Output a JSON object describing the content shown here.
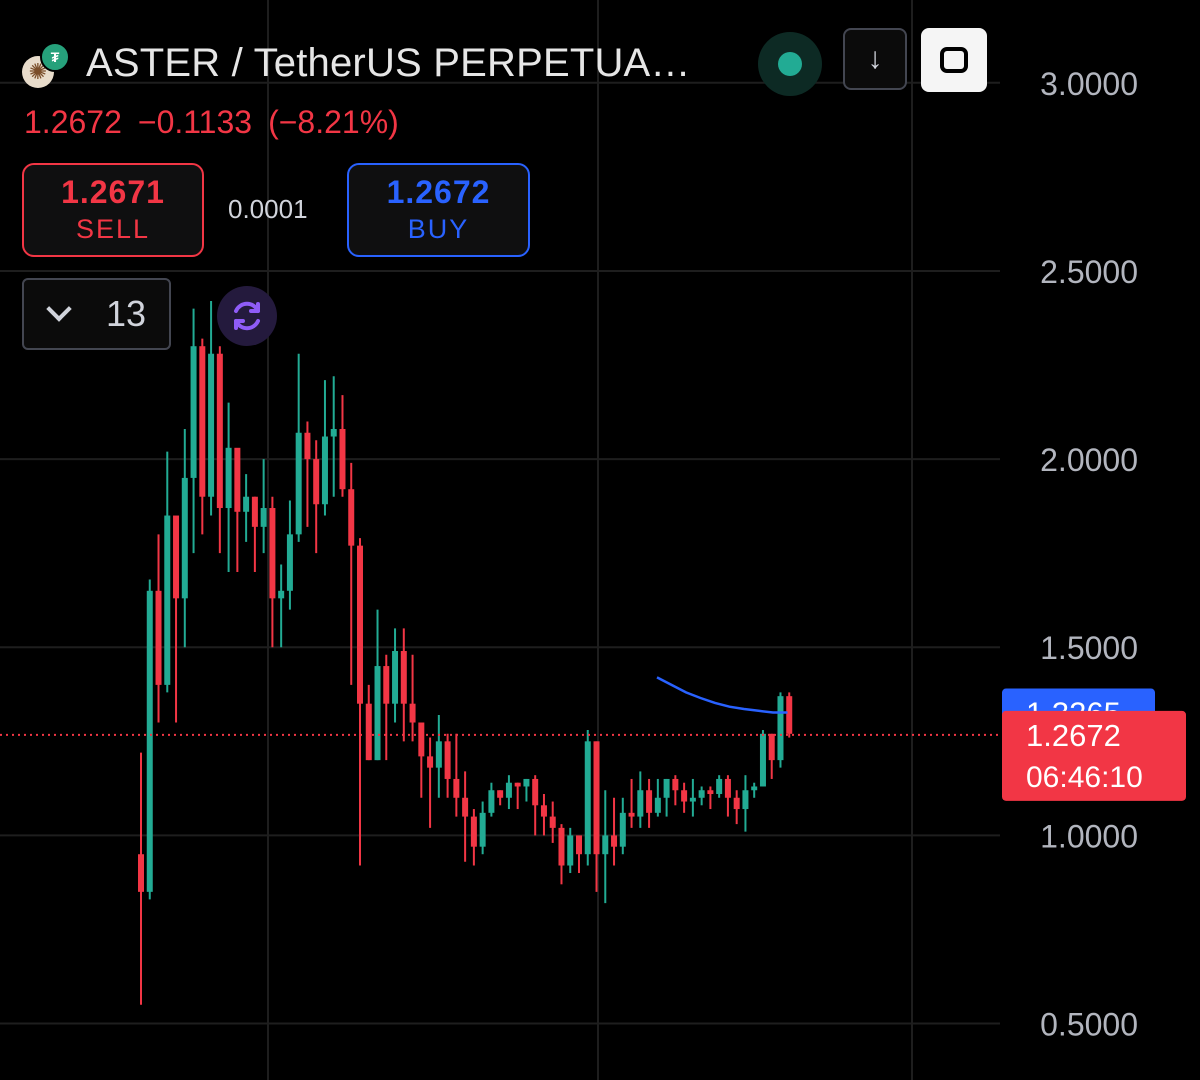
{
  "header": {
    "title": "ASTER / TetherUS PERPETUA…"
  },
  "quote": {
    "last": "1.2672",
    "change": "−0.1133",
    "change_pct": "(−8.21%)"
  },
  "trade": {
    "sell_price": "1.2671",
    "sell_label": "SELL",
    "spread": "0.0001",
    "buy_price": "1.2672",
    "buy_label": "BUY"
  },
  "toolbar": {
    "interval_value": "13"
  },
  "icons": {
    "logo": "aster-logo-icon",
    "quote_currency": "tether-icon",
    "status": "market-open-dot-icon",
    "download": "arrow-down-icon",
    "fullscreen": "fullscreen-icon",
    "interval": "chevron-down-icon",
    "refresh": "refresh-icon"
  },
  "colors": {
    "up": "#22ab94",
    "down": "#f23645",
    "ma_line": "#2962ff",
    "grid": "#1e1e1e",
    "axis_text": "#b2b5be"
  },
  "chart_data": {
    "type": "candlestick",
    "y_ticks": [
      "3.0000",
      "2.5000",
      "2.0000",
      "1.5000",
      "1.0000",
      "0.5000"
    ],
    "ylim": [
      0.35,
      3.22
    ],
    "grid": true,
    "last_price_label": "1.2672",
    "last_price_value": 1.2672,
    "countdown": "06:46:10",
    "ma_label": "1.3265",
    "ma_value": 1.3265,
    "ma_line": [
      1.42,
      1.4,
      1.38,
      1.365,
      1.352,
      1.342,
      1.336,
      1.331,
      1.3265,
      1.3265
    ],
    "ma_start_index": 75,
    "candles": [
      [
        0.95,
        0.85,
        1.22,
        0.55
      ],
      [
        0.85,
        1.65,
        1.68,
        0.83
      ],
      [
        1.65,
        1.4,
        1.8,
        1.3
      ],
      [
        1.4,
        1.85,
        2.02,
        1.38
      ],
      [
        1.85,
        1.63,
        1.7,
        1.3
      ],
      [
        1.63,
        1.95,
        2.08,
        1.5
      ],
      [
        1.95,
        2.3,
        2.4,
        1.75
      ],
      [
        2.3,
        1.9,
        2.32,
        1.8
      ],
      [
        1.9,
        2.28,
        2.42,
        1.85
      ],
      [
        2.28,
        1.87,
        2.3,
        1.75
      ],
      [
        1.87,
        2.03,
        2.15,
        1.7
      ],
      [
        2.03,
        1.86,
        2.0,
        1.7
      ],
      [
        1.86,
        1.9,
        1.96,
        1.78
      ],
      [
        1.9,
        1.82,
        1.9,
        1.7
      ],
      [
        1.82,
        1.87,
        2.0,
        1.75
      ],
      [
        1.87,
        1.63,
        1.9,
        1.5
      ],
      [
        1.63,
        1.65,
        1.72,
        1.5
      ],
      [
        1.65,
        1.8,
        1.89,
        1.6
      ],
      [
        1.8,
        2.07,
        2.28,
        1.78
      ],
      [
        2.07,
        2.0,
        2.1,
        1.82
      ],
      [
        2.0,
        1.88,
        2.05,
        1.75
      ],
      [
        1.88,
        2.06,
        2.21,
        1.85
      ],
      [
        2.06,
        2.08,
        2.22,
        1.9
      ],
      [
        2.08,
        1.92,
        2.17,
        1.9
      ],
      [
        1.92,
        1.77,
        1.99,
        1.4
      ],
      [
        1.77,
        1.35,
        1.79,
        0.92
      ],
      [
        1.35,
        1.2,
        1.4,
        1.2
      ],
      [
        1.2,
        1.45,
        1.6,
        1.2
      ],
      [
        1.45,
        1.35,
        1.48,
        1.2
      ],
      [
        1.35,
        1.49,
        1.55,
        1.3
      ],
      [
        1.49,
        1.35,
        1.55,
        1.25
      ],
      [
        1.35,
        1.3,
        1.48,
        1.25
      ],
      [
        1.3,
        1.21,
        1.29,
        1.1
      ],
      [
        1.21,
        1.18,
        1.26,
        1.02
      ],
      [
        1.18,
        1.25,
        1.32,
        1.1
      ],
      [
        1.25,
        1.15,
        1.27,
        1.1
      ],
      [
        1.15,
        1.1,
        1.27,
        1.05
      ],
      [
        1.1,
        1.05,
        1.17,
        0.93
      ],
      [
        1.05,
        0.97,
        1.07,
        0.92
      ],
      [
        0.97,
        1.06,
        1.09,
        0.95
      ],
      [
        1.06,
        1.12,
        1.14,
        1.05
      ],
      [
        1.12,
        1.1,
        1.12,
        1.08
      ],
      [
        1.1,
        1.14,
        1.16,
        1.07
      ],
      [
        1.14,
        1.13,
        1.14,
        1.07
      ],
      [
        1.13,
        1.15,
        1.15,
        1.09
      ],
      [
        1.15,
        1.08,
        1.16,
        1.0
      ],
      [
        1.08,
        1.05,
        1.11,
        1.0
      ],
      [
        1.05,
        1.02,
        1.09,
        0.98
      ],
      [
        1.02,
        0.92,
        1.03,
        0.87
      ],
      [
        0.92,
        1.0,
        1.02,
        0.9
      ],
      [
        1.0,
        0.95,
        0.98,
        0.9
      ],
      [
        0.95,
        1.25,
        1.28,
        0.92
      ],
      [
        1.25,
        0.95,
        1.25,
        0.85
      ],
      [
        0.95,
        1.0,
        1.12,
        0.82
      ],
      [
        1.0,
        0.97,
        1.1,
        0.92
      ],
      [
        0.97,
        1.06,
        1.1,
        0.95
      ],
      [
        1.06,
        1.05,
        1.15,
        1.02
      ],
      [
        1.05,
        1.12,
        1.17,
        1.02
      ],
      [
        1.12,
        1.06,
        1.15,
        1.02
      ],
      [
        1.06,
        1.1,
        1.15,
        1.05
      ],
      [
        1.1,
        1.15,
        1.15,
        1.05
      ],
      [
        1.15,
        1.12,
        1.16,
        1.08
      ],
      [
        1.12,
        1.09,
        1.14,
        1.06
      ],
      [
        1.09,
        1.1,
        1.15,
        1.05
      ],
      [
        1.1,
        1.12,
        1.13,
        1.08
      ],
      [
        1.12,
        1.11,
        1.13,
        1.07
      ],
      [
        1.11,
        1.15,
        1.16,
        1.1
      ],
      [
        1.15,
        1.1,
        1.16,
        1.05
      ],
      [
        1.1,
        1.07,
        1.12,
        1.03
      ],
      [
        1.07,
        1.12,
        1.16,
        1.01
      ],
      [
        1.12,
        1.13,
        1.14,
        1.1
      ],
      [
        1.13,
        1.27,
        1.28,
        1.13
      ],
      [
        1.27,
        1.2,
        1.27,
        1.15
      ],
      [
        1.2,
        1.37,
        1.38,
        1.18
      ],
      [
        1.37,
        1.27,
        1.38,
        1.26
      ]
    ]
  }
}
